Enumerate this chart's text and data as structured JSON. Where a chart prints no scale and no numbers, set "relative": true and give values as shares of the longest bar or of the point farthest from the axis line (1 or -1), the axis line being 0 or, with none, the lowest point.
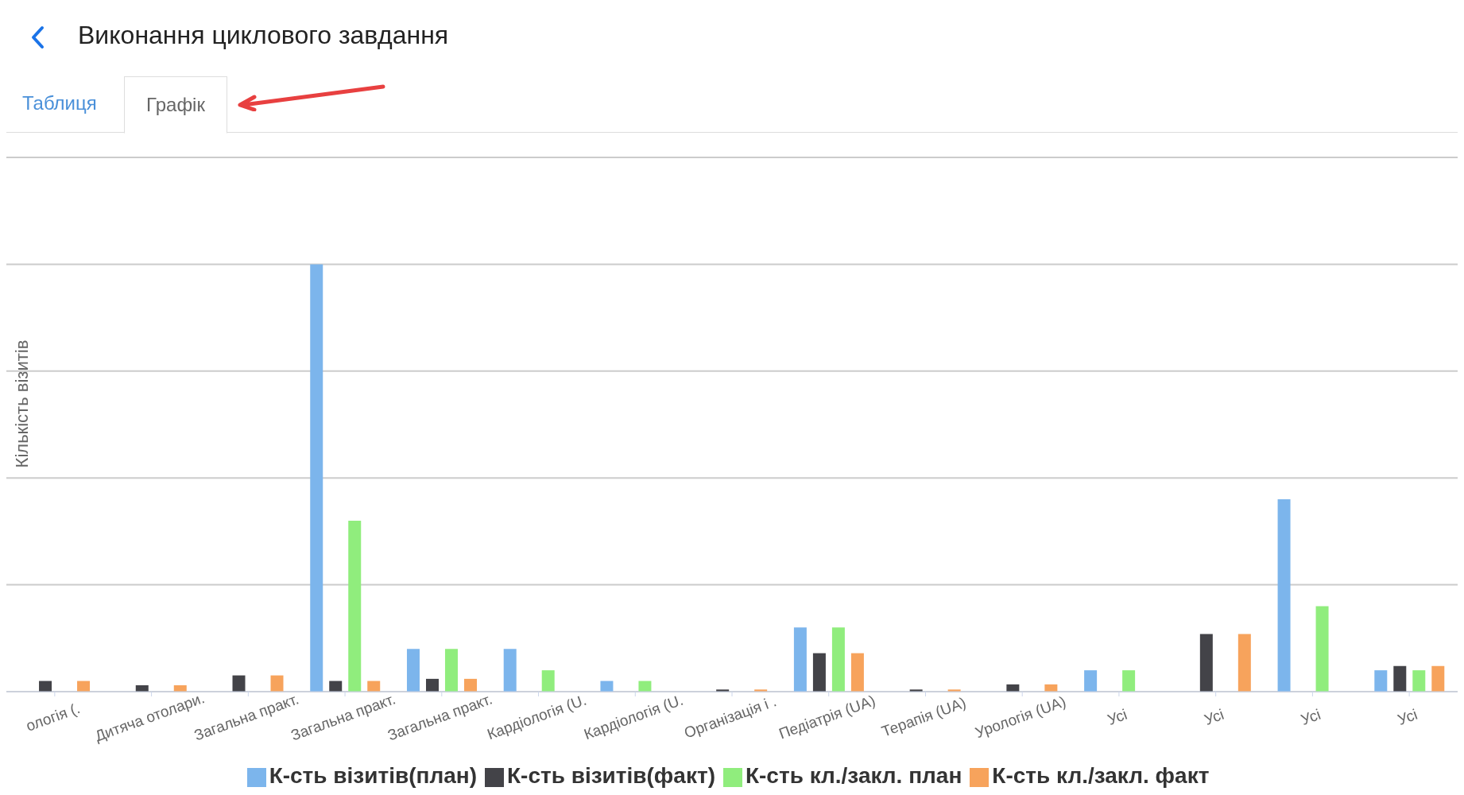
{
  "chart_data": {
    "type": "bar",
    "title": "Виконання циклового завдання",
    "annotations": [
      "Таблиця",
      "Графік"
    ],
    "ylabel": "Кількість візитів",
    "relative": true,
    "grid": "y",
    "legend": "bottom",
    "categories": [
      "ологія (.",
      "Дитяча отолари.",
      "Загальна практ.",
      "Загальна практ.",
      "Загальна практ.",
      "Кардіологія (U.",
      "Кардіологія (U.",
      "Організація і .",
      "Педіатрія (UA)",
      "Терапія (UA)",
      "Урологія (UA)",
      "Усі",
      "Усі",
      "Усі",
      "Усі"
    ],
    "series": [
      {
        "name": "К-сть візитів(план)",
        "color": "#7cb5ec",
        "values": [
          null,
          null,
          null,
          1,
          0.1,
          0.1,
          0.025,
          null,
          0.15,
          null,
          null,
          0.05,
          null,
          0.45,
          0.05
        ]
      },
      {
        "name": "К-сть візитів(факт)",
        "color": "#434348",
        "values": [
          0.025,
          0.015,
          0.038,
          0.025,
          0.03,
          null,
          null,
          0.005,
          0.09,
          0.005,
          0.017,
          null,
          0.135,
          null,
          0.06
        ]
      },
      {
        "name": "К-сть кл./закл. план",
        "color": "#90ed7d",
        "values": [
          null,
          null,
          null,
          0.4,
          0.1,
          0.05,
          0.025,
          null,
          0.15,
          null,
          null,
          0.05,
          null,
          0.2,
          0.05
        ]
      },
      {
        "name": "К-сть кл./закл. факт",
        "color": "#f7a35c",
        "values": [
          0.025,
          0.015,
          0.038,
          0.025,
          0.03,
          null,
          null,
          0.005,
          0.09,
          0.005,
          0.017,
          null,
          0.135,
          null,
          0.06
        ]
      }
    ]
  }
}
